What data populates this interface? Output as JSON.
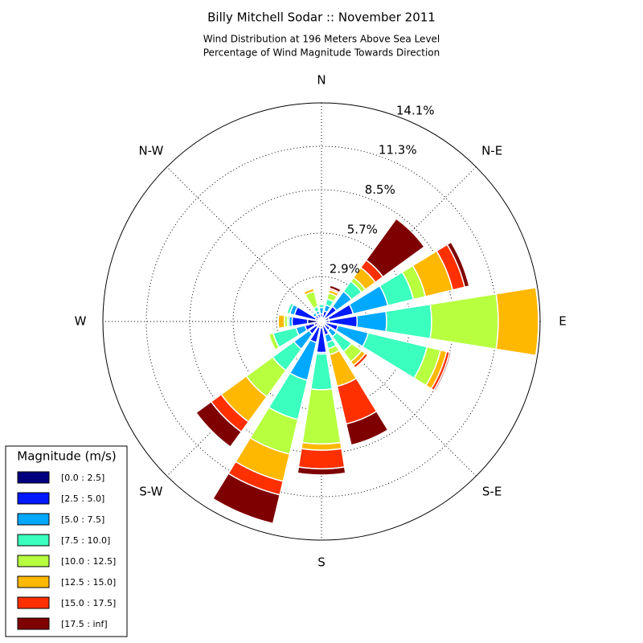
{
  "chart_data": {
    "type": "windrose",
    "title": "Billy Mitchell Sodar :: November 2011",
    "subtitle": [
      "Wind Distribution at 196 Meters Above Sea Level",
      "Percentage of Wind Magnitude Towards Direction"
    ],
    "directions": [
      "N",
      null,
      "N-E",
      null,
      "E",
      null,
      "S-E",
      null,
      "S",
      null,
      "S-W",
      null,
      "W",
      null,
      "N-W",
      null
    ],
    "rlim": [
      0,
      14.1
    ],
    "rticks": [
      {
        "value": 2.9,
        "label": "2.9%"
      },
      {
        "value": 5.7,
        "label": "5.7%"
      },
      {
        "value": 8.5,
        "label": "8.5%"
      },
      {
        "value": 11.3,
        "label": "11.3%"
      },
      {
        "value": 14.1,
        "label": "14.1%"
      }
    ],
    "legend_title": "Magnitude (m/s)",
    "legend": "lower left",
    "series": [
      {
        "name": "[0.0 : 2.5]",
        "color": "#00007f",
        "values": [
          0.2,
          0.2,
          0.3,
          0.5,
          0.5,
          0.3,
          0.2,
          0.3,
          0.4,
          0.4,
          0.4,
          0.5,
          0.9,
          0.4,
          0.2,
          0.2
        ]
      },
      {
        "name": "[2.5 : 5.0]",
        "color": "#0019ff",
        "values": [
          0.3,
          0.5,
          0.9,
          1.6,
          1.8,
          0.8,
          0.5,
          0.6,
          1.6,
          1.0,
          0.6,
          0.6,
          1.0,
          1.4,
          0.3,
          0.3
        ]
      },
      {
        "name": "[5.0 : 7.5]",
        "color": "#00a8ff",
        "values": [
          0.4,
          0.4,
          1.2,
          2.3,
          1.9,
          2.0,
          0.5,
          0.5,
          0.1,
          2.5,
          1.2,
          0.6,
          0.2,
          0.3,
          0.2,
          0.2
        ]
      },
      {
        "name": "[7.5 : 10.0]",
        "color": "#3affbe",
        "values": [
          0.2,
          0.4,
          0.8,
          1.7,
          2.9,
          3.9,
          1.2,
          0.4,
          2.3,
          2.6,
          1.7,
          1.5,
          0.1,
          0.2,
          0.1,
          0.3
        ]
      },
      {
        "name": "[10.0 : 12.5]",
        "color": "#b7ff3f",
        "values": [
          0.1,
          0.4,
          0.3,
          0.8,
          4.3,
          0.9,
          0.8,
          0.4,
          3.5,
          2.3,
          2.1,
          0.3,
          0.2,
          0,
          0,
          1.0
        ]
      },
      {
        "name": "[12.5 : 15.0]",
        "color": "#ffb800",
        "values": [
          0,
          0.2,
          0.8,
          1.8,
          2.6,
          0.4,
          0.3,
          2.1,
          0.4,
          1.8,
          2.0,
          0,
          0.4,
          0,
          0,
          0.2
        ]
      },
      {
        "name": "[15.0 : 17.5]",
        "color": "#ff3000",
        "values": [
          0,
          0.1,
          0.6,
          0.8,
          0,
          0.2,
          0.2,
          2.5,
          1.2,
          0.9,
          0.8,
          0,
          0,
          0,
          0,
          0
        ]
      },
      {
        "name": "[17.5 : inf]",
        "color": "#7f0000",
        "values": [
          0,
          0.2,
          3.3,
          0.3,
          0,
          0.1,
          0,
          1.4,
          0.4,
          1.9,
          1.2,
          0,
          0,
          0,
          0,
          0
        ]
      }
    ]
  }
}
